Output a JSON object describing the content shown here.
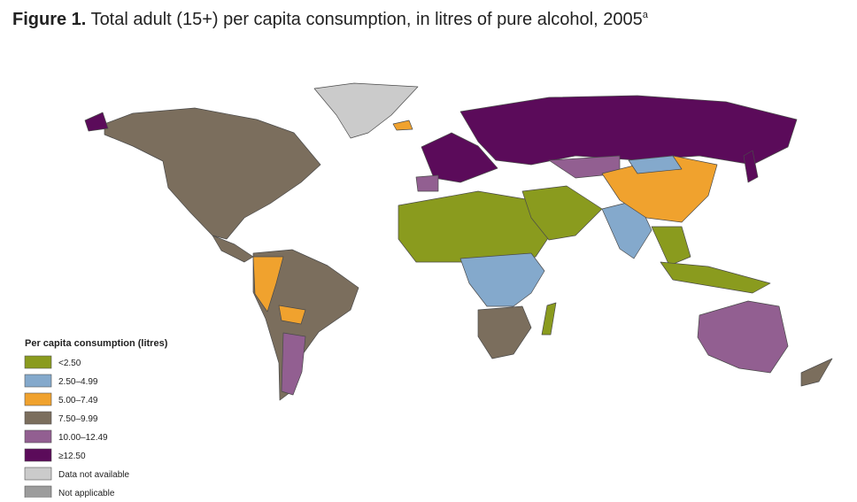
{
  "title": {
    "label": "Figure 1.",
    "text": "Total adult (15+) per capita consumption, in litres of pure alcohol, 2005",
    "superscript": "a"
  },
  "legend": {
    "title": "Per capita consumption (litres)",
    "items": [
      {
        "label": "<2.50",
        "color": "#8a9b1e"
      },
      {
        "label": "2.50–4.99",
        "color": "#84a9cc"
      },
      {
        "label": "5.00–7.49",
        "color": "#f0a22e"
      },
      {
        "label": "7.50–9.99",
        "color": "#7b6e5d"
      },
      {
        "label": "10.00–12.49",
        "color": "#925f91"
      },
      {
        "label": "≥12.50",
        "color": "#5b0b5a"
      },
      {
        "label": "Data not available",
        "color": "#cbcbcb"
      },
      {
        "label": "Not applicable",
        "color": "#9c9c9c"
      }
    ]
  }
}
